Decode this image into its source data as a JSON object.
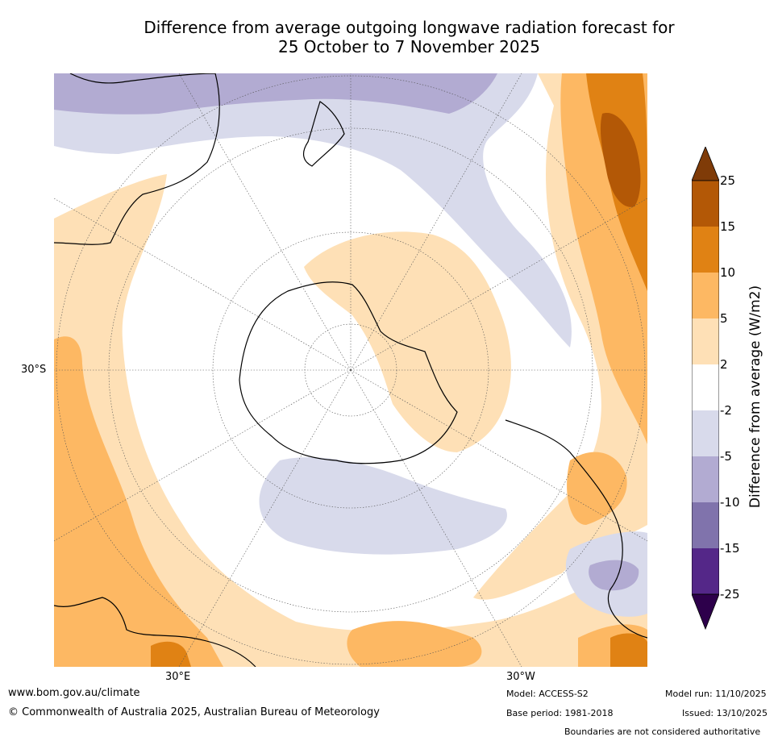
{
  "title": {
    "line1": "Difference from average outgoing longwave radiation forecast for",
    "line2": "25 October to 7 November 2025"
  },
  "map": {
    "projection": "south-polar-stereographic",
    "lon_labels": [
      "30°E",
      "30°W"
    ],
    "lat_label": "30°S",
    "palette": {
      "gt25": "#7f3b08",
      "r15_25": "#b35806",
      "r10_15": "#e08214",
      "r5_10": "#fdb863",
      "r2_5": "#fee0b6",
      "neutral": "#ffffff",
      "m2_5": "#d8daeb",
      "m5_10": "#b2abd2",
      "m10_15": "#8073ac",
      "m15_25": "#542788",
      "lt25": "#2d004b"
    }
  },
  "colorbar": {
    "label": "Difference from average (W/m2)",
    "ticks": [
      "25",
      "15",
      "10",
      "5",
      "2",
      "-2",
      "-5",
      "-10",
      "-15",
      "-25"
    ]
  },
  "footer": {
    "website": "www.bom.gov.au/climate",
    "copyright": "© Commonwealth of Australia 2025, Australian Bureau of Meteorology",
    "model": "Model: ACCESS-S2",
    "model_run": "Model run: 11/10/2025",
    "base_period": "Base period: 1981-2018",
    "issued": "Issued: 13/10/2025",
    "disclaimer": "Boundaries are not considered authoritative"
  }
}
